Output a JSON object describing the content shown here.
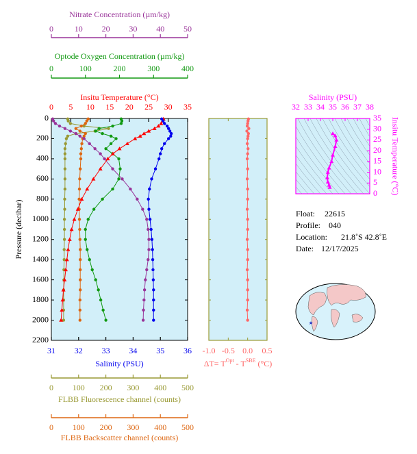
{
  "chart_data": [
    {
      "type": "profile",
      "ylabel": "Pressure (decibar)",
      "ylim": [
        0,
        2200
      ],
      "yticks": [
        0,
        200,
        400,
        600,
        800,
        1000,
        1200,
        1400,
        1600,
        1800,
        2000,
        2200
      ],
      "y": [
        5,
        25,
        50,
        75,
        100,
        125,
        150,
        175,
        200,
        250,
        300,
        350,
        400,
        500,
        600,
        700,
        800,
        900,
        1000,
        1100,
        1200,
        1300,
        1400,
        1500,
        1600,
        1700,
        1800,
        1900,
        2000
      ],
      "axes": [
        {
          "label": "Nitrate Concentration (µm/kg)",
          "color": "#993399",
          "xlim": [
            0,
            50
          ],
          "xticks": [
            0,
            10,
            20,
            30,
            40,
            50
          ]
        },
        {
          "label": "Optode Oxygen Concentration (µm/kg)",
          "color": "#119911",
          "xlim": [
            0,
            400
          ],
          "xticks": [
            0,
            100,
            200,
            300,
            400
          ]
        },
        {
          "label": "Insitu Temperature (°C)",
          "color": "#ff0000",
          "xlim": [
            0,
            35
          ],
          "xticks": [
            0,
            5,
            10,
            15,
            20,
            25,
            30,
            35
          ]
        },
        {
          "label": "Salinity (PSU)",
          "color": "#0000ee",
          "xlim": [
            31,
            36
          ],
          "xticks": [
            31,
            32,
            33,
            34,
            35,
            36
          ]
        },
        {
          "label": "FLBB Fluorescence channel (counts)",
          "color": "#999933",
          "xlim": [
            0,
            500
          ],
          "xticks": [
            0,
            100,
            200,
            300,
            400,
            500
          ]
        },
        {
          "label": "FLBB Backscatter channel (counts)",
          "color": "#dd6611",
          "xlim": [
            0,
            500
          ],
          "xticks": [
            0,
            100,
            200,
            300,
            400,
            500
          ]
        }
      ],
      "series": [
        {
          "axis": 4,
          "color": "#999933",
          "marker": "circle",
          "x": [
            60,
            62,
            70,
            120,
            210,
            160,
            90,
            60,
            55,
            52,
            50,
            50,
            50,
            50,
            50,
            50,
            49,
            49,
            48,
            48,
            48,
            47,
            47,
            46,
            46,
            45,
            45,
            45,
            45
          ]
        },
        {
          "axis": 5,
          "color": "#dd6611",
          "marker": "circle",
          "x": [
            135,
            130,
            125,
            110,
            90,
            105,
            125,
            120,
            115,
            112,
            110,
            108,
            108,
            106,
            104,
            103,
            102,
            102,
            103,
            104,
            105,
            106,
            106,
            106,
            106,
            106,
            105,
            105,
            105
          ]
        },
        {
          "axis": 0,
          "color": "#993399",
          "marker": "circle",
          "x": [
            0.5,
            0.8,
            1.5,
            3,
            5,
            7,
            9,
            10.5,
            12,
            14,
            16,
            18,
            19.5,
            22.5,
            26,
            29,
            31.5,
            33.5,
            35,
            35.5,
            35.8,
            35.8,
            35.5,
            35,
            34.5,
            34.2,
            34,
            33.8,
            33.7
          ]
        },
        {
          "axis": 1,
          "color": "#119911",
          "marker": "circle",
          "x": [
            205,
            207,
            205,
            180,
            140,
            130,
            150,
            175,
            190,
            175,
            160,
            180,
            198,
            202,
            198,
            180,
            150,
            125,
            108,
            100,
            100,
            105,
            112,
            120,
            130,
            138,
            145,
            152,
            160
          ]
        },
        {
          "axis": 2,
          "color": "#ff0000",
          "marker": "triangle",
          "x": [
            28.8,
            28.6,
            28.2,
            27.5,
            26.5,
            25.0,
            23.8,
            22.8,
            21.5,
            19.5,
            17.5,
            15.8,
            14.5,
            12.6,
            10.8,
            9.2,
            7.8,
            6.8,
            5.9,
            5.2,
            4.7,
            4.3,
            4.0,
            3.7,
            3.4,
            3.1,
            2.9,
            2.7,
            2.5
          ]
        },
        {
          "axis": 3,
          "color": "#0000ee",
          "marker": "circle",
          "x": [
            35.05,
            35.1,
            35.15,
            35.25,
            35.3,
            35.35,
            35.4,
            35.38,
            35.3,
            35.15,
            35.05,
            35.0,
            34.95,
            34.82,
            34.68,
            34.6,
            34.56,
            34.58,
            34.62,
            34.66,
            34.69,
            34.71,
            34.72,
            34.73,
            34.74,
            34.75,
            34.75,
            34.75,
            34.75
          ]
        }
      ]
    },
    {
      "type": "delta",
      "xlabel_parts": [
        "ΔT= T",
        "Opt",
        " - T",
        "SBE",
        " (°C)"
      ],
      "color": "#ff6666",
      "xlim": [
        -1,
        0.5
      ],
      "xticks": [
        {
          "value": -1,
          "label": "-1.0"
        },
        -0.5,
        {
          "value": 0,
          "label": "0.0"
        },
        0.5
      ],
      "ylim": [
        0,
        2200
      ],
      "yticks": [
        0,
        200,
        400,
        600,
        800,
        1000,
        1200,
        1400,
        1600,
        1800,
        2000,
        2200
      ],
      "y": [
        5,
        25,
        50,
        75,
        100,
        125,
        150,
        175,
        200,
        250,
        300,
        350,
        400,
        500,
        600,
        700,
        800,
        900,
        1000,
        1100,
        1200,
        1300,
        1400,
        1500,
        1600,
        1700,
        1800,
        1900,
        2000
      ],
      "x": [
        0.02,
        0.01,
        0.0,
        -0.01,
        0.03,
        -0.02,
        0.02,
        0.01,
        0.0,
        -0.01,
        0.01,
        0.0,
        -0.01,
        0.0,
        -0.01,
        0.0,
        0.0,
        -0.01,
        0.0,
        0.0,
        -0.01,
        0.0,
        0.0,
        -0.01,
        0.0,
        0.0,
        0.0,
        -0.01,
        0.0
      ]
    },
    {
      "type": "ts",
      "xlabel": "Salinity (PSU)",
      "ylabel": "Insitu Temperature (°C)",
      "color": "#ff00ff",
      "xlim": [
        32,
        38
      ],
      "xticks": [
        32,
        33,
        34,
        35,
        36,
        37,
        38
      ],
      "ylim": [
        0,
        35
      ],
      "yticks": [
        0,
        5,
        10,
        15,
        20,
        25,
        30,
        35
      ],
      "x": [
        35.0,
        35.2,
        35.3,
        35.2,
        35.0,
        34.9,
        34.7,
        34.6,
        34.55,
        34.6,
        34.7,
        34.75
      ],
      "y": [
        28,
        27,
        25,
        22,
        18,
        15,
        12,
        10,
        7.5,
        5.5,
        4,
        3
      ]
    }
  ],
  "float_info": [
    {
      "label": "Float:",
      "value": "22615"
    },
    {
      "label": "Profile:",
      "value": "040"
    },
    {
      "label": "Location:",
      "value": "21.8˚S  42.8˚E"
    },
    {
      "label": "Date:",
      "value": "12/17/2025"
    }
  ]
}
